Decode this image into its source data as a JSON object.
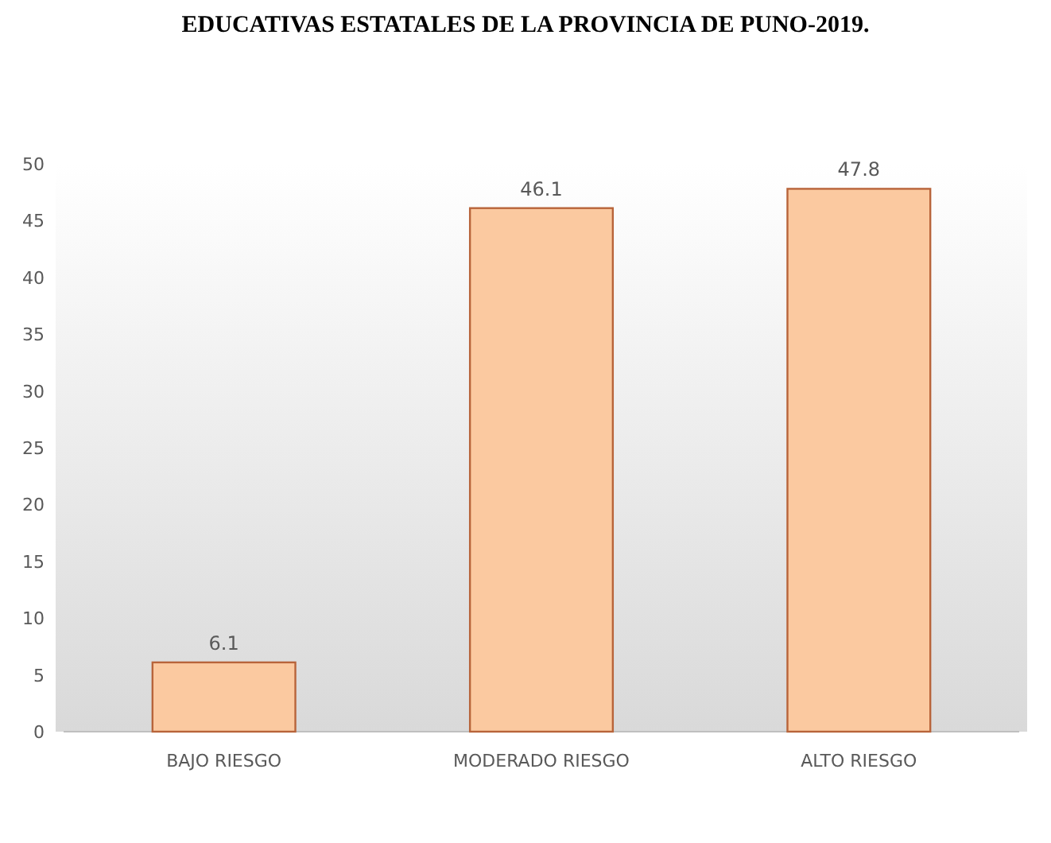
{
  "chart_data": {
    "type": "bar",
    "title": "EDUCATIVAS ESTATALES DE LA PROVINCIA DE PUNO-2019.",
    "categories": [
      "BAJO RIESGO",
      "MODERADO RIESGO",
      "ALTO RIESGO"
    ],
    "values": [
      6.1,
      46.1,
      47.8
    ],
    "color": "#fbc9a0",
    "ylim": [
      0,
      50
    ],
    "yticks": [
      0,
      5,
      10,
      15,
      20,
      25,
      30,
      35,
      40,
      45,
      50
    ],
    "grid": false,
    "data_labels": true
  }
}
